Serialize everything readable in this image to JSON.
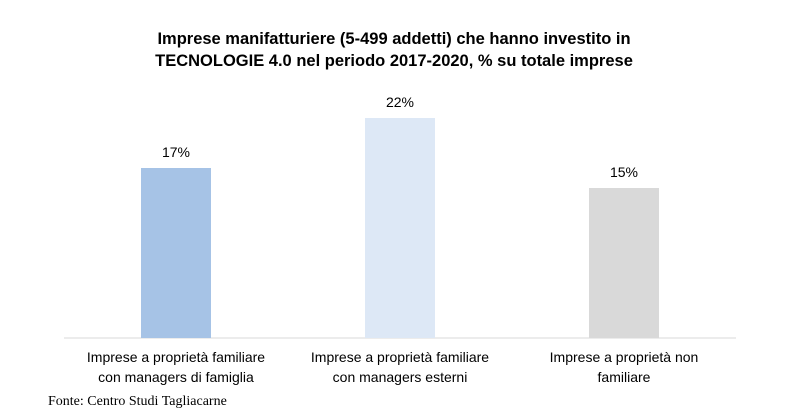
{
  "chart_data": {
    "type": "bar",
    "title": [
      "Imprese manifatturiere (5-499 addetti) che hanno investito in",
      "TECNOLOGIE 4.0 nel periodo 2017-2020, % su totale imprese"
    ],
    "categories": [
      [
        "Imprese a proprietà familiare",
        "con managers di famiglia"
      ],
      [
        "Imprese a proprietà familiare",
        "con managers esterni"
      ],
      [
        "Imprese a proprietà non",
        "familiare"
      ]
    ],
    "values": [
      17,
      22,
      15
    ],
    "data_labels": [
      "17%",
      "22%",
      "15%"
    ],
    "bar_colors": [
      "#a6c3e6",
      "#dde8f6",
      "#d9d9d9"
    ],
    "ylim": [
      0,
      25
    ],
    "grid": false,
    "legend": "none"
  },
  "source_note": "Fonte: Centro Studi Tagliacarne"
}
